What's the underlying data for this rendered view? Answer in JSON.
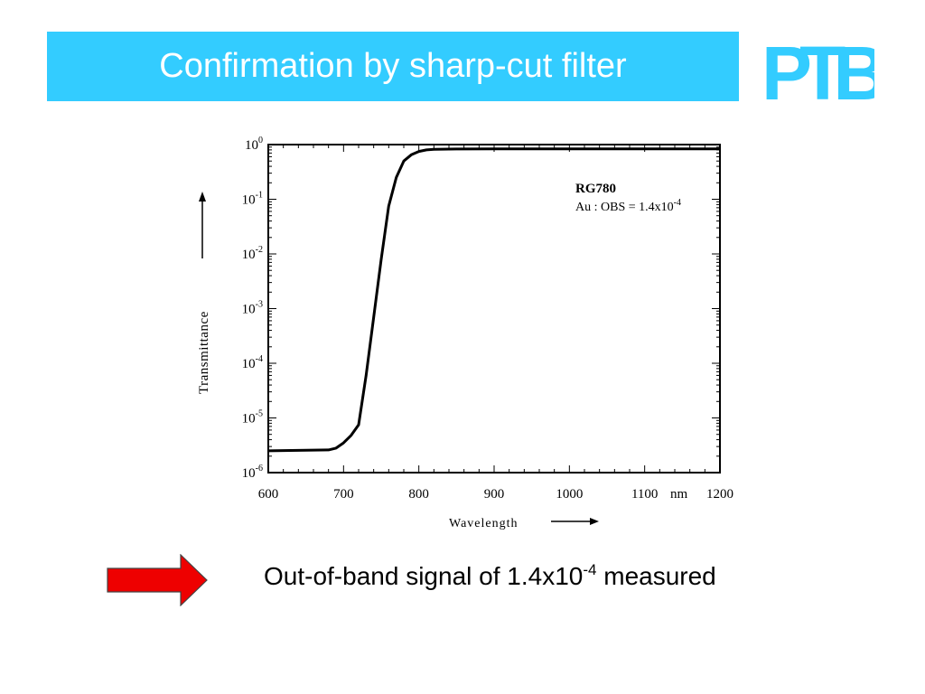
{
  "slide": {
    "title": "Confirmation by sharp-cut filter",
    "logo_text": "PTB",
    "caption": {
      "before": "Out-of-band signal of 1.4x10",
      "exponent": "-4",
      "after": " measured"
    },
    "colors": {
      "title_bar": "#33ccff",
      "title_text": "#ffffff",
      "logo": "#33ccff",
      "arrow": "#ee0000"
    },
    "icons": [
      "right-arrow-icon"
    ]
  },
  "chart_data": {
    "type": "line",
    "xlabel": "Wavelength",
    "ylabel": "Transmittance",
    "x_unit": "nm",
    "x_ticks": [
      600,
      700,
      800,
      900,
      1000,
      1100,
      1200
    ],
    "xlim": [
      600,
      1200
    ],
    "y_scale": "log",
    "ylim": [
      1e-06,
      1
    ],
    "y_ticks": [
      {
        "value": 1,
        "base": "10",
        "exp": "0"
      },
      {
        "value": 0.1,
        "base": "10",
        "exp": "-1"
      },
      {
        "value": 0.01,
        "base": "10",
        "exp": "-2"
      },
      {
        "value": 0.001,
        "base": "10",
        "exp": "-3"
      },
      {
        "value": 0.0001,
        "base": "10",
        "exp": "-4"
      },
      {
        "value": 1e-05,
        "base": "10",
        "exp": "-5"
      },
      {
        "value": 1e-06,
        "base": "10",
        "exp": "-6"
      }
    ],
    "grid": false,
    "annotation": {
      "title": "RG780",
      "text_before": "Au : OBS = 1.4x10",
      "text_exp": "-4"
    },
    "series": [
      {
        "x": [
          600,
          680,
          690,
          700,
          710,
          720,
          730,
          740,
          750,
          760,
          770,
          780,
          790,
          800,
          810,
          820,
          850,
          900,
          1000,
          1100,
          1200
        ],
        "y": [
          2.5e-06,
          2.6e-06,
          2.8e-06,
          3.5e-06,
          4.8e-06,
          7.5e-06,
          6e-05,
          0.0007,
          0.008,
          0.075,
          0.25,
          0.5,
          0.65,
          0.75,
          0.8,
          0.82,
          0.83,
          0.835,
          0.835,
          0.835,
          0.835
        ]
      }
    ]
  }
}
